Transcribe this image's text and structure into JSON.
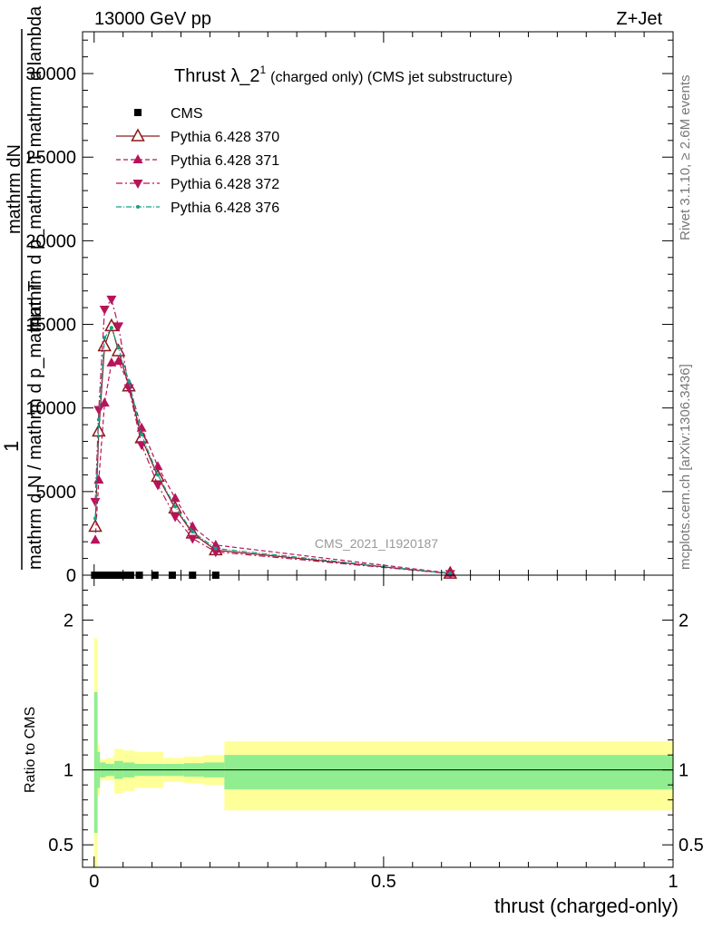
{
  "header": {
    "left_label": "13000 GeV pp",
    "right_label": "Z+Jet"
  },
  "side_text": {
    "rivet": "Rivet 3.1.10, ≥ 2.6M events",
    "mcplots": "mcplots.cern.ch [arXiv:1306.3436]"
  },
  "watermark": "CMS_2021_I1920187",
  "chart_data": [
    {
      "type": "line",
      "title_main": "Thrust λ_2",
      "title_sup": "1",
      "title_rest": "(charged only) (CMS jet substructure)",
      "ylabel_top": "mathrm dN",
      "ylabel_top2": "mathrm d p_mathrm T mathrm d lambda",
      "ylabel_big": "1",
      "ylabel_bottom": "mathrm d N / mathrm d p_mathrm T",
      "ylim": [
        0,
        32500
      ],
      "xlim": [
        -0.02,
        1.0
      ],
      "yticks": [
        0,
        5000,
        10000,
        15000,
        20000,
        25000,
        30000
      ],
      "ytick_labels": [
        "0",
        "5000",
        "10000",
        "15000",
        "20000",
        "25000",
        "30000"
      ],
      "legend_position": "top-left",
      "series": [
        {
          "name": "CMS",
          "color": "#000000",
          "marker": "square",
          "x": [
            0.001,
            0.004,
            0.008,
            0.013,
            0.018,
            0.025,
            0.033,
            0.042,
            0.052,
            0.063,
            0.078,
            0.105,
            0.135,
            0.17,
            0.21
          ],
          "y": [
            0,
            0,
            0,
            0,
            0,
            0,
            0,
            0,
            0,
            0,
            0,
            0,
            0,
            0,
            0
          ]
        },
        {
          "name": "Pythia 6.428 370",
          "color": "#8b1a1a",
          "marker": "open-triangle-up",
          "dash": "none",
          "x": [
            0.002,
            0.008,
            0.018,
            0.03,
            0.042,
            0.06,
            0.082,
            0.11,
            0.14,
            0.17,
            0.21,
            0.615
          ],
          "y": [
            2900,
            8600,
            13700,
            14900,
            13400,
            11300,
            8200,
            5900,
            4000,
            2500,
            1500,
            100
          ]
        },
        {
          "name": "Pythia 6.428 371",
          "color": "#b8135a",
          "marker": "triangle-up",
          "dash": "5,3",
          "x": [
            0.002,
            0.008,
            0.018,
            0.03,
            0.042,
            0.06,
            0.082,
            0.11,
            0.14,
            0.17,
            0.21,
            0.615
          ],
          "y": [
            2100,
            5700,
            10300,
            12700,
            12800,
            11400,
            8800,
            6500,
            4600,
            2900,
            1800,
            120
          ]
        },
        {
          "name": "Pythia 6.428 372",
          "color": "#b8135a",
          "marker": "triangle-down",
          "dash": "7,3,2,3",
          "x": [
            0.002,
            0.008,
            0.018,
            0.03,
            0.042,
            0.06,
            0.082,
            0.11,
            0.14,
            0.17,
            0.21,
            0.615
          ],
          "y": [
            4400,
            9900,
            15900,
            16500,
            14900,
            11200,
            7800,
            5400,
            3500,
            2200,
            1400,
            90
          ]
        },
        {
          "name": "Pythia 6.428 376",
          "color": "#13a08a",
          "marker": "small-dot",
          "dash": "6,2,1,2",
          "x": [
            0.002,
            0.008,
            0.018,
            0.03,
            0.042,
            0.06,
            0.082,
            0.11,
            0.14,
            0.17,
            0.21,
            0.615
          ],
          "y": [
            3400,
            9300,
            14200,
            14800,
            13600,
            11600,
            8400,
            6000,
            4100,
            2600,
            1600,
            100
          ]
        }
      ]
    },
    {
      "type": "area",
      "ylabel": "Ratio to CMS",
      "ylim": [
        0.35,
        2.3
      ],
      "xlim": [
        -0.02,
        1.0
      ],
      "yticks": [
        0.5,
        1,
        2
      ],
      "ytick_labels": [
        "0.5",
        "1",
        "2"
      ],
      "xticks": [
        0,
        0.5,
        1
      ],
      "xtick_labels": [
        "0",
        "0.5",
        "1"
      ],
      "xlabel": "thrust (charged-only)",
      "reference_line": 1,
      "bins": [
        {
          "x0": 0.0,
          "x1": 0.006,
          "stat_lo": 0.58,
          "stat_hi": 1.52,
          "tot_lo": 0.35,
          "tot_hi": 1.88
        },
        {
          "x0": 0.006,
          "x1": 0.01,
          "stat_lo": 0.88,
          "stat_hi": 1.12,
          "tot_lo": 0.83,
          "tot_hi": 1.17
        },
        {
          "x0": 0.01,
          "x1": 0.02,
          "stat_lo": 0.95,
          "stat_hi": 1.05,
          "tot_lo": 0.93,
          "tot_hi": 1.07
        },
        {
          "x0": 0.02,
          "x1": 0.035,
          "stat_lo": 0.96,
          "stat_hi": 1.04,
          "tot_lo": 0.93,
          "tot_hi": 1.08
        },
        {
          "x0": 0.035,
          "x1": 0.05,
          "stat_lo": 0.94,
          "stat_hi": 1.06,
          "tot_lo": 0.84,
          "tot_hi": 1.14
        },
        {
          "x0": 0.05,
          "x1": 0.07,
          "stat_lo": 0.95,
          "stat_hi": 1.05,
          "tot_lo": 0.86,
          "tot_hi": 1.13
        },
        {
          "x0": 0.07,
          "x1": 0.12,
          "stat_lo": 0.96,
          "stat_hi": 1.04,
          "tot_lo": 0.88,
          "tot_hi": 1.12
        },
        {
          "x0": 0.12,
          "x1": 0.155,
          "stat_lo": 0.96,
          "stat_hi": 1.04,
          "tot_lo": 0.92,
          "tot_hi": 1.08
        },
        {
          "x0": 0.155,
          "x1": 0.19,
          "stat_lo": 0.955,
          "stat_hi": 1.045,
          "tot_lo": 0.91,
          "tot_hi": 1.09
        },
        {
          "x0": 0.19,
          "x1": 0.225,
          "stat_lo": 0.95,
          "stat_hi": 1.05,
          "tot_lo": 0.9,
          "tot_hi": 1.1
        },
        {
          "x0": 0.225,
          "x1": 1.0,
          "stat_lo": 0.87,
          "stat_hi": 1.1,
          "tot_lo": 0.73,
          "tot_hi": 1.19
        }
      ],
      "colors": {
        "stat": "#90ee90",
        "total": "#ffff99"
      }
    }
  ]
}
